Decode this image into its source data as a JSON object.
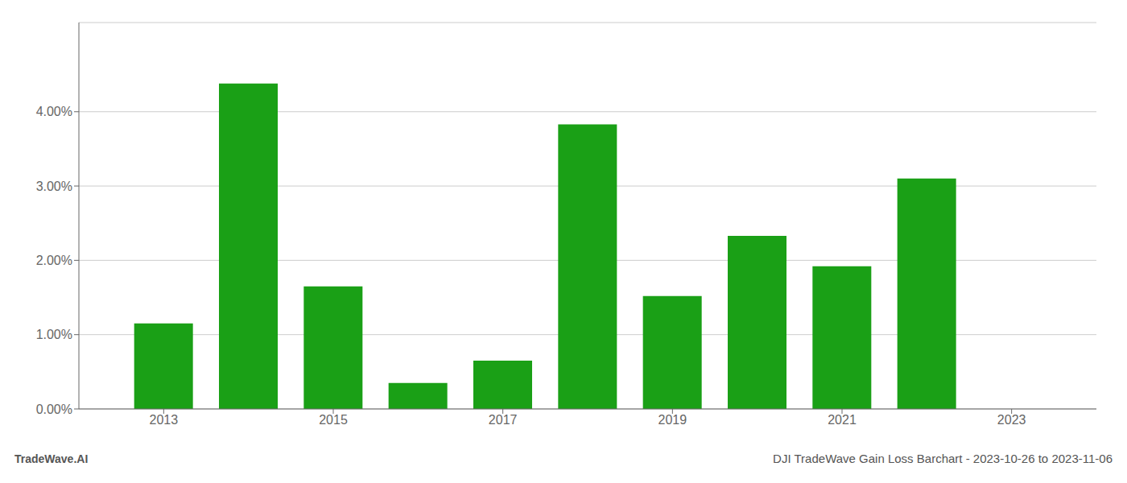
{
  "chart_data": {
    "type": "bar",
    "title": "DJI TradeWave Gain Loss Barchart - 2023-10-26 to 2023-11-06",
    "annotations": [
      "TradeWave.AI"
    ],
    "x": [
      2013,
      2014,
      2015,
      2016,
      2017,
      2018,
      2019,
      2020,
      2021,
      2022
    ],
    "values": [
      0.0115,
      0.0438,
      0.0165,
      0.0035,
      0.0065,
      0.0383,
      0.0152,
      0.0233,
      0.0192,
      0.031
    ],
    "color": "#1aa016",
    "xlim": [
      2012.0,
      2024.0
    ],
    "xticks": [
      2013,
      2015,
      2017,
      2019,
      2021,
      2023
    ],
    "ylim": [
      0.0,
      0.052
    ],
    "yticks": [
      {
        "value": 0.0,
        "label": "0.00%"
      },
      {
        "value": 0.01,
        "label": "1.00%"
      },
      {
        "value": 0.02,
        "label": "2.00%"
      },
      {
        "value": 0.03,
        "label": "3.00%"
      },
      {
        "value": 0.04,
        "label": "4.00%"
      }
    ],
    "grid": true
  }
}
